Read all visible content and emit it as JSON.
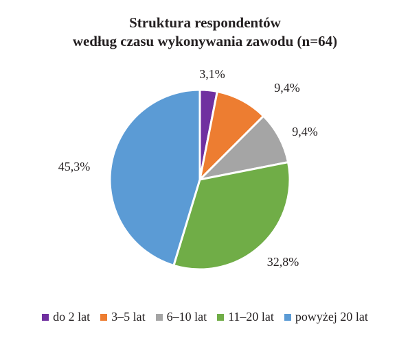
{
  "chart_data": {
    "type": "pie",
    "title": "Struktura respondentów według czasu wykonywania zawodu (n=64)",
    "title_lines": [
      "Struktura respondentów",
      "według czasu wykonywania zawodu (n=64)"
    ],
    "categories": [
      "do 2 lat",
      "3–5 lat",
      "6–10 lat",
      "11–20 lat",
      "powyżej 20 lat"
    ],
    "values": [
      3.1,
      9.4,
      9.4,
      32.8,
      45.3
    ],
    "labels": [
      "3,1%",
      "9,4%",
      "9,4%",
      "32,8%",
      "45,3%"
    ],
    "colors": [
      "#7030a0",
      "#ed7d31",
      "#a5a5a5",
      "#70ad47",
      "#5b9bd5"
    ],
    "legend_position": "bottom",
    "start_angle": "12 o'clock",
    "direction": "clockwise"
  }
}
